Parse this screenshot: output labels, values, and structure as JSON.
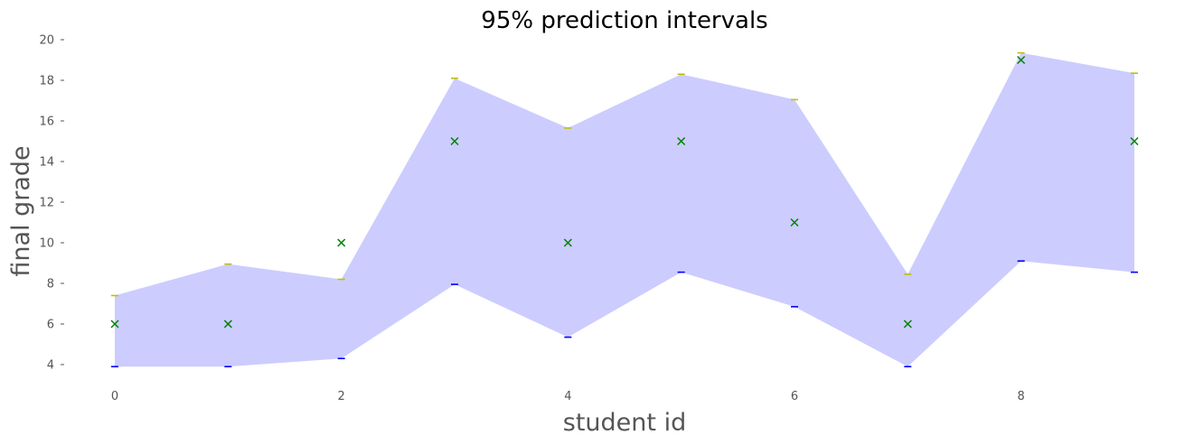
{
  "chart_data": {
    "type": "area",
    "title": "95% prediction intervals",
    "xlabel": "student id",
    "ylabel": "final grade",
    "xlim": [
      -0.35,
      9.35
    ],
    "ylim": [
      3.0,
      20.0
    ],
    "xticks": [
      0,
      2,
      4,
      6,
      8
    ],
    "yticks": [
      4,
      6,
      8,
      10,
      12,
      14,
      16,
      18,
      20
    ],
    "grid": false,
    "x": [
      0,
      1,
      2,
      3,
      4,
      5,
      6,
      7,
      8,
      9
    ],
    "series": [
      {
        "role": "interval",
        "lower": [
          3.9,
          3.9,
          4.3,
          7.95,
          5.35,
          8.55,
          6.85,
          3.9,
          9.1,
          8.55
        ],
        "upper": [
          7.4,
          8.95,
          8.2,
          18.1,
          15.65,
          18.3,
          17.05,
          8.45,
          19.35,
          18.35
        ]
      },
      {
        "role": "observed",
        "marker": "x",
        "values": [
          6,
          6,
          10,
          15,
          10,
          15,
          11,
          6,
          19,
          15
        ]
      }
    ],
    "colors": {
      "band": "#ccccff",
      "lower_cap": "#0000ff",
      "upper_cap": "#bfbf00",
      "observed": "#008000",
      "text": "#555555"
    }
  }
}
